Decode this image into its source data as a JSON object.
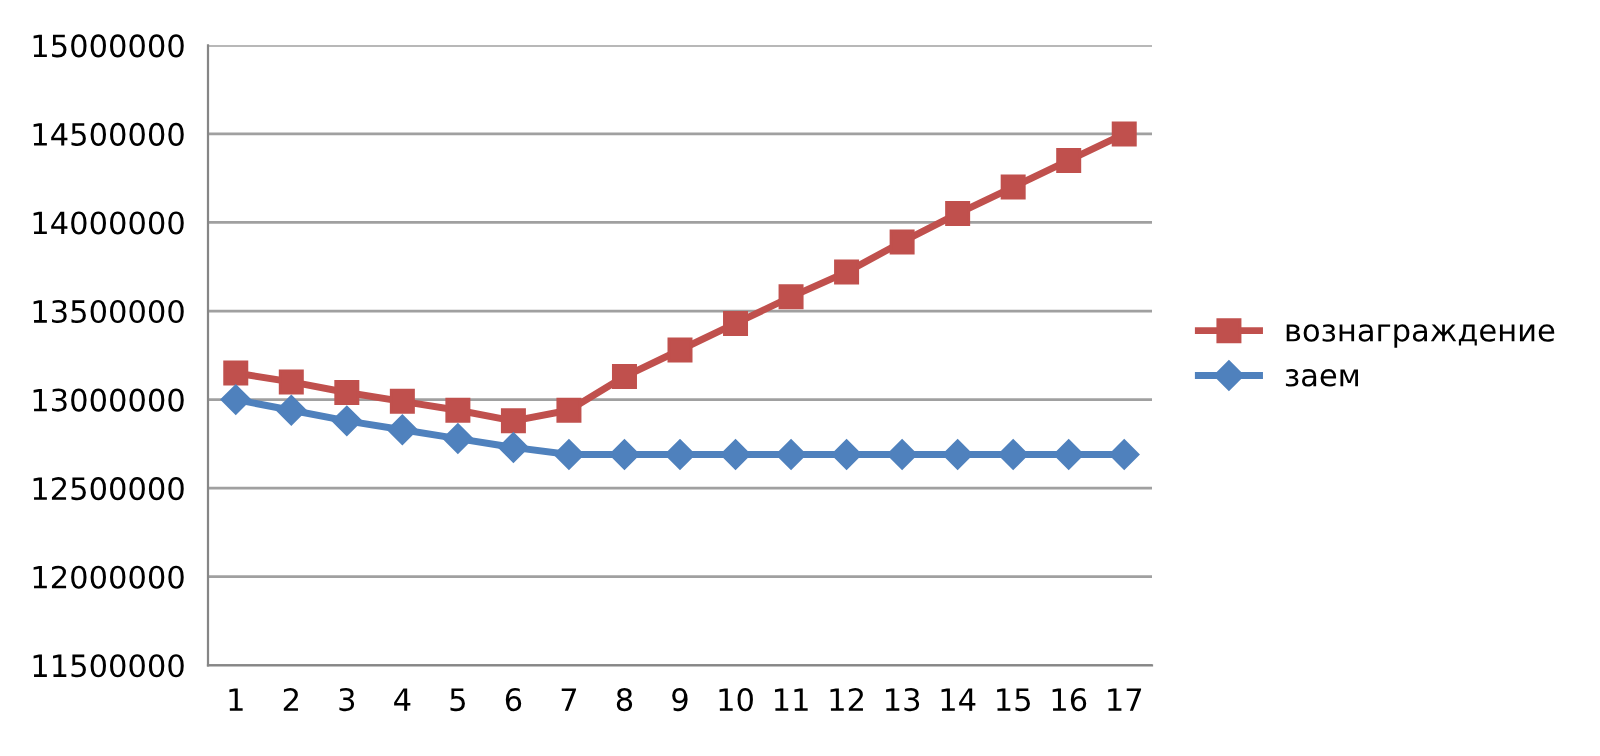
{
  "chart_data": {
    "type": "line",
    "categories": [
      "1",
      "2",
      "3",
      "4",
      "5",
      "6",
      "7",
      "8",
      "9",
      "10",
      "11",
      "12",
      "13",
      "14",
      "15",
      "16",
      "17"
    ],
    "series": [
      {
        "name": "вознаграждение",
        "color": "#c0504d",
        "marker": "square",
        "values": [
          13150000,
          13100000,
          13040000,
          12990000,
          12940000,
          12880000,
          12940000,
          13130000,
          13280000,
          13430000,
          13580000,
          13720000,
          13890000,
          14050000,
          14200000,
          14350000,
          14500000
        ]
      },
      {
        "name": "заем",
        "color": "#4f81bd",
        "marker": "diamond",
        "values": [
          13000000,
          12940000,
          12880000,
          12830000,
          12780000,
          12730000,
          12690000,
          12690000,
          12690000,
          12690000,
          12690000,
          12690000,
          12690000,
          12690000,
          12690000,
          12690000,
          12690000
        ]
      }
    ],
    "ylim": [
      11500000,
      15000000
    ],
    "yticks": [
      11500000,
      12000000,
      12500000,
      13000000,
      13500000,
      14000000,
      14500000,
      15000000
    ],
    "grid": "y",
    "legend": "right",
    "line_style": "solid"
  }
}
